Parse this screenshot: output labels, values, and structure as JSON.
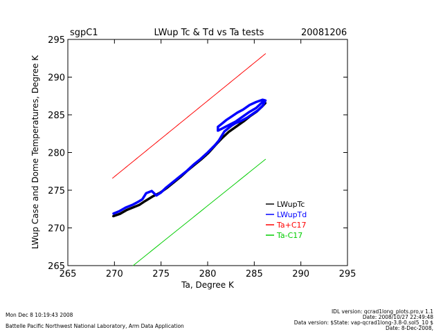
{
  "header": {
    "site": "sgpC1",
    "title": "LWup Tc & Td vs Ta tests",
    "date": "20081206"
  },
  "footer": {
    "left_line1": "Mon Dec  8 10:19:43 2008",
    "left_line2": "Battelle Pacific Northwest National Laboratory, Arm Data Application",
    "right_line1": "IDL version: qcrad1long_plots.pro,v 1.1",
    "right_line2": "Date: 2008/10/27 22:49:48",
    "right_line3": "Data version: $State: vap-qcrad1long-3.8-0.sol5_10 $",
    "right_line4": "Date: 8-Dec-2008,"
  },
  "chart_data": {
    "type": "line",
    "xlabel": "Ta, Degree K",
    "ylabel": "LWup Case and Dome Temperatures, Degree K",
    "xlim": [
      265,
      295
    ],
    "ylim": [
      265,
      295
    ],
    "xticks": [
      265,
      270,
      275,
      280,
      285,
      290,
      295
    ],
    "yticks": [
      265,
      270,
      275,
      280,
      285,
      290,
      295
    ],
    "grid": false,
    "legend_position": "bottom-right",
    "series": [
      {
        "name": "LWupTc",
        "color": "#000000",
        "x": [
          269.8,
          270.5,
          271.2,
          272,
          272.6,
          273.2,
          274,
          274.8,
          275.5,
          276.2,
          277,
          277.8,
          278.5,
          279.2,
          280,
          280.8,
          281.5,
          282.2,
          283,
          283.8,
          284.5,
          285.2,
          285.8,
          286.1
        ],
        "y": [
          271.7,
          272,
          272.5,
          272.9,
          273.2,
          273.7,
          274.3,
          274.8,
          275.4,
          276.1,
          276.9,
          277.8,
          278.5,
          279.2,
          280.1,
          281.2,
          282.1,
          282.9,
          283.6,
          284.3,
          285,
          285.6,
          286.3,
          286.7
        ]
      },
      {
        "name": "LWupTd",
        "color": "#0000ff",
        "x": [
          269.9,
          270.5,
          271.2,
          272,
          272.6,
          273,
          273.4,
          274,
          274.5,
          275,
          275.5,
          276.2,
          277,
          277.8,
          278.5,
          279.2,
          280,
          280.8,
          281.2,
          281.5,
          281.8,
          282.2,
          282.6,
          283,
          283.6,
          284.2,
          284.8,
          285.4,
          285.9,
          286.2,
          285.9,
          285.2,
          284.5,
          283.8,
          283.2,
          282.6,
          282,
          281.5,
          281.1,
          281.1,
          281.6,
          282.2,
          283,
          283.8,
          284.5,
          285.2,
          285.8,
          286.1
        ],
        "y": [
          271.9,
          272.2,
          272.7,
          273.1,
          273.5,
          273.8,
          274.6,
          274.9,
          274.3,
          274.7,
          275.3,
          276,
          276.8,
          277.6,
          278.4,
          279.1,
          280,
          281,
          281.6,
          282.2,
          282.8,
          283.2,
          283.6,
          283.9,
          284.2,
          284.6,
          285.1,
          285.6,
          286.2,
          286.9,
          287,
          286.7,
          286.3,
          285.7,
          285.3,
          284.8,
          284.3,
          283.8,
          283.4,
          282.9,
          283.2,
          283.6,
          284.1,
          284.8,
          285.4,
          285.9,
          286.6,
          286.9
        ]
      },
      {
        "name": "Ta+C17",
        "color": "#ff0000",
        "x": [
          269.8,
          286.2
        ],
        "y": [
          276.6,
          293.1
        ]
      },
      {
        "name": "Ta-C17",
        "color": "#00cc00",
        "x": [
          272,
          286.2
        ],
        "y": [
          265,
          279.1
        ]
      }
    ]
  }
}
